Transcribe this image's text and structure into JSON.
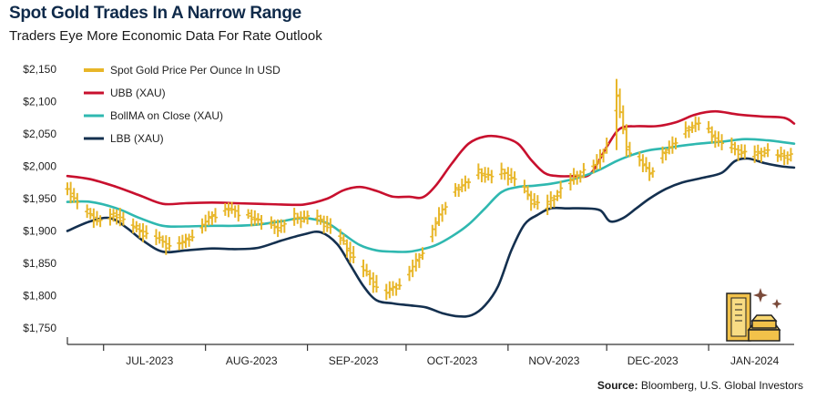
{
  "title": "Spot Gold Trades In A Narrow Range",
  "subtitle": "Traders Eye More Economic Data For Rate Outlook",
  "source_label": "Source:",
  "source_text": "Bloomberg, U.S. Global Investors",
  "colors": {
    "gold": "#e8b628",
    "ubb": "#c8102e",
    "bollma": "#2fb8b0",
    "lbb": "#14304f",
    "axis": "#333333"
  },
  "chart_data": {
    "type": "line",
    "title": "Spot Gold Trades In A Narrow Range",
    "subtitle": "Traders Eye More Economic Data For Rate Outlook",
    "xlabel": "",
    "ylabel": "",
    "ylim": [
      1750,
      2150
    ],
    "yticks": [
      1750,
      1800,
      1850,
      1900,
      1950,
      2000,
      2050,
      2100,
      2150
    ],
    "ytick_labels": [
      "$1,750",
      "$1,800",
      "$1,850",
      "$1,900",
      "$1,950",
      "$2,000",
      "$2,050",
      "$2,100",
      "$2,150"
    ],
    "xlim": [
      "2023-06-20",
      "2024-01-27"
    ],
    "xtick_labels": [
      "JUL-2023",
      "AUG-2023",
      "SEP-2023",
      "OCT-2023",
      "NOV-2023",
      "DEC-2023",
      "JAN-2024"
    ],
    "xtick_dates": [
      "2023-07-15",
      "2023-08-15",
      "2023-09-15",
      "2023-10-15",
      "2023-11-15",
      "2023-12-15",
      "2024-01-15"
    ],
    "month_boundaries": [
      "2023-07-01",
      "2023-08-01",
      "2023-09-01",
      "2023-10-01",
      "2023-11-01",
      "2023-12-01",
      "2024-01-01"
    ],
    "grid": false,
    "legend_position": "top-left",
    "series": [
      {
        "name": "Spot Gold Price Per Ounce In USD",
        "style": "ohlc-bars",
        "color": "#e8b628",
        "points": [
          [
            "2023-06-20",
            1965
          ],
          [
            "2023-06-25",
            1930
          ],
          [
            "2023-06-30",
            1915
          ],
          [
            "2023-07-05",
            1925
          ],
          [
            "2023-07-10",
            1905
          ],
          [
            "2023-07-15",
            1895
          ],
          [
            "2023-07-20",
            1880
          ],
          [
            "2023-07-25",
            1882
          ],
          [
            "2023-07-30",
            1905
          ],
          [
            "2023-08-03",
            1925
          ],
          [
            "2023-08-08",
            1935
          ],
          [
            "2023-08-13",
            1925
          ],
          [
            "2023-08-18",
            1915
          ],
          [
            "2023-08-23",
            1905
          ],
          [
            "2023-08-28",
            1920
          ],
          [
            "2023-09-02",
            1922
          ],
          [
            "2023-09-07",
            1910
          ],
          [
            "2023-09-12",
            1880
          ],
          [
            "2023-09-17",
            1845
          ],
          [
            "2023-09-22",
            1815
          ],
          [
            "2023-09-25",
            1805
          ],
          [
            "2023-09-29",
            1820
          ],
          [
            "2023-10-03",
            1845
          ],
          [
            "2023-10-07",
            1880
          ],
          [
            "2023-10-11",
            1925
          ],
          [
            "2023-10-15",
            1960
          ],
          [
            "2023-10-19",
            1975
          ],
          [
            "2023-10-23",
            1990
          ],
          [
            "2023-10-27",
            1985
          ],
          [
            "2023-10-31",
            1990
          ],
          [
            "2023-11-04",
            1975
          ],
          [
            "2023-11-08",
            1948
          ],
          [
            "2023-11-12",
            1935
          ],
          [
            "2023-11-16",
            1960
          ],
          [
            "2023-11-20",
            1978
          ],
          [
            "2023-11-24",
            1995
          ],
          [
            "2023-11-28",
            2005
          ],
          [
            "2023-12-01",
            2038
          ],
          [
            "2023-12-04",
            2110
          ],
          [
            "2023-12-07",
            2030
          ],
          [
            "2023-12-11",
            2010
          ],
          [
            "2023-12-14",
            1990
          ],
          [
            "2023-12-18",
            2020
          ],
          [
            "2023-12-22",
            2040
          ],
          [
            "2023-12-26",
            2060
          ],
          [
            "2023-12-29",
            2068
          ],
          [
            "2024-01-02",
            2048
          ],
          [
            "2024-01-06",
            2030
          ],
          [
            "2024-01-10",
            2025
          ],
          [
            "2024-01-14",
            2015
          ],
          [
            "2024-01-18",
            2025
          ],
          [
            "2024-01-22",
            2015
          ],
          [
            "2024-01-26",
            2018
          ]
        ]
      },
      {
        "name": "UBB (XAU)",
        "color": "#c8102e",
        "points": [
          [
            "2023-06-20",
            1985
          ],
          [
            "2023-06-27",
            1980
          ],
          [
            "2023-07-05",
            1968
          ],
          [
            "2023-07-12",
            1955
          ],
          [
            "2023-07-19",
            1942
          ],
          [
            "2023-07-26",
            1943
          ],
          [
            "2023-08-03",
            1944
          ],
          [
            "2023-08-10",
            1943
          ],
          [
            "2023-08-17",
            1942
          ],
          [
            "2023-08-24",
            1941
          ],
          [
            "2023-08-31",
            1941
          ],
          [
            "2023-09-07",
            1950
          ],
          [
            "2023-09-12",
            1963
          ],
          [
            "2023-09-17",
            1968
          ],
          [
            "2023-09-22",
            1962
          ],
          [
            "2023-09-27",
            1953
          ],
          [
            "2023-10-02",
            1953
          ],
          [
            "2023-10-06",
            1952
          ],
          [
            "2023-10-10",
            1970
          ],
          [
            "2023-10-15",
            2005
          ],
          [
            "2023-10-20",
            2035
          ],
          [
            "2023-10-25",
            2046
          ],
          [
            "2023-10-30",
            2045
          ],
          [
            "2023-11-04",
            2035
          ],
          [
            "2023-11-08",
            2010
          ],
          [
            "2023-11-12",
            1990
          ],
          [
            "2023-11-16",
            1985
          ],
          [
            "2023-11-21",
            1985
          ],
          [
            "2023-11-26",
            1988
          ],
          [
            "2023-12-01",
            2030
          ],
          [
            "2023-12-05",
            2058
          ],
          [
            "2023-12-10",
            2062
          ],
          [
            "2023-12-16",
            2062
          ],
          [
            "2023-12-22",
            2068
          ],
          [
            "2023-12-28",
            2080
          ],
          [
            "2024-01-03",
            2085
          ],
          [
            "2024-01-10",
            2080
          ],
          [
            "2024-01-17",
            2077
          ],
          [
            "2024-01-24",
            2075
          ],
          [
            "2024-01-27",
            2066
          ]
        ]
      },
      {
        "name": "BollMA on Close (XAU)",
        "color": "#2fb8b0",
        "points": [
          [
            "2023-06-20",
            1945
          ],
          [
            "2023-06-27",
            1945
          ],
          [
            "2023-07-05",
            1935
          ],
          [
            "2023-07-12",
            1920
          ],
          [
            "2023-07-19",
            1908
          ],
          [
            "2023-07-26",
            1907
          ],
          [
            "2023-08-03",
            1908
          ],
          [
            "2023-08-10",
            1908
          ],
          [
            "2023-08-17",
            1910
          ],
          [
            "2023-08-24",
            1915
          ],
          [
            "2023-08-31",
            1920
          ],
          [
            "2023-09-07",
            1912
          ],
          [
            "2023-09-12",
            1895
          ],
          [
            "2023-09-17",
            1878
          ],
          [
            "2023-09-22",
            1870
          ],
          [
            "2023-09-27",
            1868
          ],
          [
            "2023-10-02",
            1868
          ],
          [
            "2023-10-06",
            1872
          ],
          [
            "2023-10-10",
            1878
          ],
          [
            "2023-10-15",
            1892
          ],
          [
            "2023-10-20",
            1910
          ],
          [
            "2023-10-25",
            1935
          ],
          [
            "2023-10-30",
            1960
          ],
          [
            "2023-11-04",
            1968
          ],
          [
            "2023-11-09",
            1970
          ],
          [
            "2023-11-14",
            1973
          ],
          [
            "2023-11-19",
            1978
          ],
          [
            "2023-11-24",
            1985
          ],
          [
            "2023-11-29",
            1995
          ],
          [
            "2023-12-04",
            2008
          ],
          [
            "2023-12-09",
            2018
          ],
          [
            "2023-12-14",
            2025
          ],
          [
            "2023-12-19",
            2028
          ],
          [
            "2023-12-24",
            2032
          ],
          [
            "2023-12-29",
            2035
          ],
          [
            "2024-01-05",
            2038
          ],
          [
            "2024-01-12",
            2042
          ],
          [
            "2024-01-19",
            2040
          ],
          [
            "2024-01-27",
            2035
          ]
        ]
      },
      {
        "name": "LBB (XAU)",
        "color": "#14304f",
        "points": [
          [
            "2023-06-20",
            1900
          ],
          [
            "2023-06-27",
            1915
          ],
          [
            "2023-07-03",
            1920
          ],
          [
            "2023-07-08",
            1905
          ],
          [
            "2023-07-13",
            1885
          ],
          [
            "2023-07-19",
            1868
          ],
          [
            "2023-07-26",
            1870
          ],
          [
            "2023-08-03",
            1873
          ],
          [
            "2023-08-10",
            1872
          ],
          [
            "2023-08-17",
            1874
          ],
          [
            "2023-08-24",
            1885
          ],
          [
            "2023-08-31",
            1895
          ],
          [
            "2023-09-05",
            1898
          ],
          [
            "2023-09-10",
            1880
          ],
          [
            "2023-09-14",
            1848
          ],
          [
            "2023-09-18",
            1815
          ],
          [
            "2023-09-22",
            1793
          ],
          [
            "2023-09-27",
            1788
          ],
          [
            "2023-10-02",
            1785
          ],
          [
            "2023-10-07",
            1782
          ],
          [
            "2023-10-12",
            1773
          ],
          [
            "2023-10-17",
            1768
          ],
          [
            "2023-10-21",
            1770
          ],
          [
            "2023-10-25",
            1785
          ],
          [
            "2023-10-29",
            1815
          ],
          [
            "2023-11-02",
            1870
          ],
          [
            "2023-11-06",
            1910
          ],
          [
            "2023-11-10",
            1925
          ],
          [
            "2023-11-14",
            1935
          ],
          [
            "2023-11-19",
            1935
          ],
          [
            "2023-11-24",
            1935
          ],
          [
            "2023-11-29",
            1932
          ],
          [
            "2023-12-02",
            1915
          ],
          [
            "2023-12-06",
            1920
          ],
          [
            "2023-12-10",
            1935
          ],
          [
            "2023-12-14",
            1950
          ],
          [
            "2023-12-19",
            1965
          ],
          [
            "2023-12-24",
            1975
          ],
          [
            "2023-12-30",
            1982
          ],
          [
            "2024-01-05",
            1990
          ],
          [
            "2024-01-09",
            2008
          ],
          [
            "2024-01-13",
            2012
          ],
          [
            "2024-01-18",
            2005
          ],
          [
            "2024-01-23",
            2000
          ],
          [
            "2024-01-27",
            1998
          ]
        ]
      }
    ]
  }
}
